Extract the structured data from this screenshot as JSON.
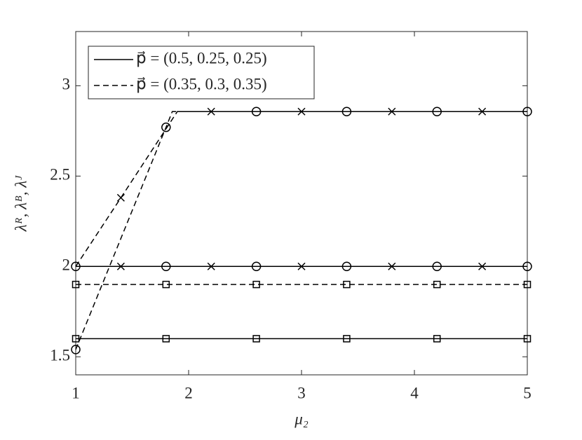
{
  "chart_data": {
    "type": "line",
    "xlabel": "μ₂",
    "ylabel": "λᴿ, λᴮ, λᴶ",
    "xlim": [
      1,
      5
    ],
    "ylim": [
      1.4,
      3.3
    ],
    "xticks": [
      1,
      2,
      3,
      4,
      5
    ],
    "yticks": [
      1.5,
      2,
      2.5,
      3
    ],
    "legend_position": "upper left",
    "legend": [
      {
        "label": "p⃗ = (0.5, 0.25, 0.25)",
        "dash": "solid"
      },
      {
        "label": "p⃗ = (0.35, 0.3, 0.35)",
        "dash": "dashed"
      }
    ],
    "series": [
      {
        "color": "#000000",
        "dash": "solid",
        "marker": "circle",
        "x": [
          1,
          1.8,
          2.6,
          3.4,
          4.2,
          5
        ],
        "values": [
          2,
          2,
          2,
          2,
          2,
          2
        ],
        "marker_indices": [
          0,
          1,
          2,
          3,
          4,
          5
        ]
      },
      {
        "color": "#000000",
        "dash": "solid",
        "marker": "cross",
        "x": [
          1.4,
          2.2,
          3.0,
          3.8,
          4.6
        ],
        "values": [
          2,
          2,
          2,
          2,
          2
        ],
        "marker_indices": [
          0,
          1,
          2,
          3,
          4
        ]
      },
      {
        "color": "#000000",
        "dash": "solid",
        "marker": "square",
        "x": [
          1,
          1.8,
          2.6,
          3.4,
          4.2,
          5
        ],
        "values": [
          1.6,
          1.6,
          1.6,
          1.6,
          1.6,
          1.6
        ],
        "marker_indices": [
          0,
          1,
          2,
          3,
          4,
          5
        ]
      },
      {
        "color": "#000000",
        "dash": "dashed",
        "marker": "circle",
        "x": [
          1,
          1.8,
          1.855,
          2.6,
          3.4,
          4.2,
          5
        ],
        "values": [
          1.54,
          2.77,
          2.857,
          2.857,
          2.857,
          2.857,
          2.857
        ],
        "marker_indices": [
          0,
          1,
          3,
          4,
          5,
          6
        ]
      },
      {
        "color": "#000000",
        "dash": "dashed",
        "marker": "cross",
        "x": [
          1,
          1.4,
          1.9,
          2.2,
          3.0,
          3.8,
          4.6,
          5
        ],
        "values": [
          2,
          2.38,
          2.857,
          2.857,
          2.857,
          2.857,
          2.857,
          2.857
        ],
        "marker_indices": [
          1,
          3,
          4,
          5,
          6
        ]
      },
      {
        "color": "#000000",
        "dash": "dashed",
        "marker": "square",
        "x": [
          1,
          1.8,
          2.6,
          3.4,
          4.2,
          5
        ],
        "values": [
          1.9,
          1.9,
          1.9,
          1.9,
          1.9,
          1.9
        ],
        "marker_indices": [
          0,
          1,
          2,
          3,
          4,
          5
        ]
      }
    ]
  }
}
